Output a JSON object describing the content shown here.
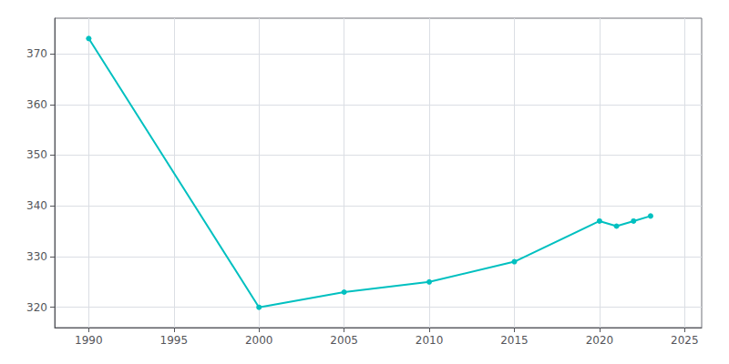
{
  "chart_data": {
    "type": "line",
    "x": [
      1990,
      2000,
      2005,
      2010,
      2015,
      2020,
      2021,
      2022,
      2023
    ],
    "values": [
      373,
      320,
      323,
      325,
      329,
      337,
      336,
      337,
      338
    ],
    "color": "#00C0C0",
    "marker": "o",
    "xlim": [
      1988,
      2026
    ],
    "ylim": [
      316,
      377
    ],
    "xticks": [
      1990,
      1995,
      2000,
      2005,
      2010,
      2015,
      2020,
      2025
    ],
    "yticks": [
      320,
      330,
      340,
      350,
      360,
      370
    ],
    "grid": true
  }
}
